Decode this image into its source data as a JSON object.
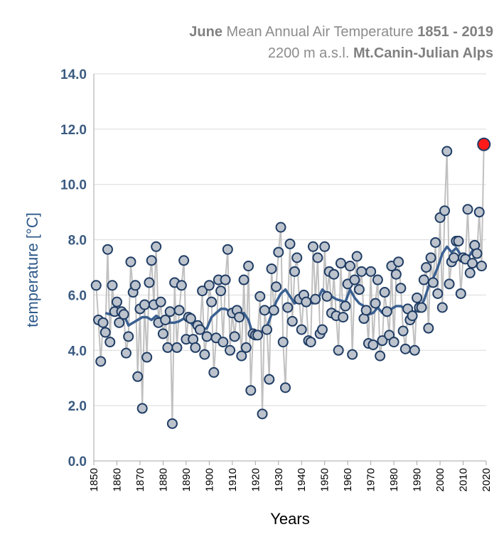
{
  "title": {
    "line1_bold1": "June",
    "line1_text": " Mean Annual Air Temperature ",
    "line1_bold2": "1851 - 2019",
    "line2_text": "2200 m a.s.l. ",
    "line2_bold": "Mt.Canin-Julian Alps"
  },
  "chart_data": {
    "type": "line",
    "xlabel": "Years",
    "ylabel": "temperature [°C]",
    "xlim": [
      1850,
      2020
    ],
    "ylim": [
      0,
      14
    ],
    "x_ticks": [
      1850,
      1860,
      1870,
      1880,
      1890,
      1900,
      1910,
      1920,
      1930,
      1940,
      1950,
      1960,
      1970,
      1980,
      1990,
      2000,
      2010,
      2020
    ],
    "y_ticks": [
      "0.0",
      "2.0",
      "4.0",
      "6.0",
      "8.0",
      "10.0",
      "12.0",
      "14.0"
    ],
    "grid": "horizontal",
    "colors": {
      "annual_line": "#c0c0c0",
      "marker_fill": "#bcc3cc",
      "marker_edge": "#1f3c64",
      "smooth_line": "#3a6091",
      "highlight_fill": "#ff1a1a",
      "axis_text": "#3a5a80",
      "grid": "#d9d9d9"
    },
    "series": [
      {
        "kind": "annual",
        "x": [
          1851,
          1852,
          1853,
          1854,
          1855,
          1856,
          1857,
          1858,
          1859,
          1860,
          1861,
          1862,
          1863,
          1864,
          1865,
          1866,
          1867,
          1868,
          1869,
          1870,
          1871,
          1872,
          1873,
          1874,
          1875,
          1876,
          1877,
          1878,
          1879,
          1880,
          1881,
          1882,
          1883,
          1884,
          1885,
          1886,
          1887,
          1888,
          1889,
          1890,
          1891,
          1892,
          1893,
          1894,
          1895,
          1896,
          1897,
          1898,
          1899,
          1900,
          1901,
          1902,
          1903,
          1904,
          1905,
          1906,
          1907,
          1908,
          1909,
          1910,
          1911,
          1912,
          1913,
          1914,
          1915,
          1916,
          1917,
          1918,
          1919,
          1920,
          1921,
          1922,
          1923,
          1924,
          1925,
          1926,
          1927,
          1928,
          1929,
          1930,
          1931,
          1932,
          1933,
          1934,
          1935,
          1936,
          1937,
          1938,
          1939,
          1940,
          1941,
          1942,
          1943,
          1944,
          1945,
          1946,
          1947,
          1948,
          1949,
          1950,
          1951,
          1952,
          1953,
          1954,
          1955,
          1956,
          1957,
          1958,
          1959,
          1960,
          1961,
          1962,
          1963,
          1964,
          1965,
          1966,
          1967,
          1968,
          1969,
          1970,
          1971,
          1972,
          1973,
          1974,
          1975,
          1976,
          1977,
          1978,
          1979,
          1980,
          1981,
          1982,
          1983,
          1984,
          1985,
          1986,
          1987,
          1988,
          1989,
          1990,
          1991,
          1992,
          1993,
          1994,
          1995,
          1996,
          1997,
          1998,
          1999,
          2000,
          2001,
          2002,
          2003,
          2004,
          2005,
          2006,
          2007,
          2008,
          2009,
          2010,
          2011,
          2012,
          2013,
          2014,
          2015,
          2016,
          2017,
          2018
        ],
        "y": [
          6.35,
          5.1,
          3.6,
          5.0,
          4.65,
          7.65,
          4.3,
          6.35,
          5.4,
          5.75,
          5.0,
          5.4,
          5.3,
          3.9,
          4.5,
          7.2,
          6.1,
          6.35,
          3.05,
          5.5,
          1.9,
          5.65,
          3.75,
          6.45,
          7.25,
          5.65,
          7.75,
          5.0,
          5.75,
          4.6,
          5.1,
          4.1,
          5.4,
          1.35,
          6.45,
          4.1,
          5.45,
          6.35,
          7.25,
          4.4,
          5.2,
          5.15,
          4.4,
          4.1,
          4.9,
          4.75,
          6.15,
          3.85,
          4.5,
          6.35,
          5.75,
          3.2,
          4.45,
          6.55,
          6.15,
          4.3,
          6.55,
          7.65,
          4.0,
          5.35,
          4.5,
          5.45,
          5.2,
          3.8,
          6.55,
          4.1,
          7.05,
          2.55,
          4.6,
          4.55,
          4.55,
          5.95,
          1.7,
          5.45,
          4.75,
          2.95,
          6.95,
          5.45,
          6.3,
          7.55,
          8.45,
          4.3,
          2.65,
          5.55,
          7.85,
          5.05,
          6.85,
          7.35,
          5.85,
          4.75,
          6.0,
          5.75,
          4.35,
          4.3,
          7.75,
          5.85,
          7.35,
          4.6,
          4.75,
          7.75,
          5.95,
          6.85,
          5.35,
          6.75,
          5.25,
          4.0,
          7.15,
          5.2,
          5.6,
          6.4,
          7.05,
          3.85,
          6.55,
          7.4,
          6.2,
          6.85,
          5.15,
          5.45,
          4.25,
          6.85,
          4.2,
          5.7,
          6.55,
          3.8,
          4.35,
          6.1,
          5.4,
          4.55,
          7.05,
          4.3,
          6.75,
          7.2,
          6.25,
          4.7,
          4.05,
          5.5,
          5.1,
          5.25,
          4.0,
          5.9,
          5.55,
          5.55,
          6.55,
          7.0,
          4.8,
          7.35,
          6.45,
          7.9,
          6.05,
          8.8,
          5.55,
          9.05,
          11.2,
          6.4,
          7.2,
          7.35,
          7.95,
          7.95,
          6.05,
          7.35,
          7.3,
          9.1,
          6.8,
          7.15,
          7.8,
          7.5,
          9.0,
          7.05
        ]
      },
      {
        "kind": "moving_average",
        "x": [
          1855,
          1857,
          1859,
          1861,
          1863,
          1865,
          1867,
          1869,
          1871,
          1873,
          1875,
          1877,
          1879,
          1881,
          1883,
          1885,
          1887,
          1889,
          1891,
          1893,
          1895,
          1897,
          1899,
          1901,
          1903,
          1905,
          1907,
          1909,
          1911,
          1913,
          1915,
          1917,
          1919,
          1921,
          1923,
          1925,
          1927,
          1929,
          1931,
          1933,
          1935,
          1937,
          1939,
          1941,
          1943,
          1945,
          1947,
          1949,
          1951,
          1953,
          1955,
          1957,
          1959,
          1961,
          1963,
          1965,
          1967,
          1969,
          1971,
          1973,
          1975,
          1977,
          1979,
          1981,
          1983,
          1985,
          1987,
          1989,
          1991,
          1993,
          1995,
          1997,
          1999,
          2001,
          2003,
          2005,
          2007,
          2009,
          2011,
          2013,
          2015
        ],
        "y": [
          5.35,
          5.3,
          5.35,
          5.4,
          5.3,
          4.9,
          5.0,
          5.1,
          5.2,
          5.2,
          5.1,
          5.25,
          5.15,
          5.1,
          5.0,
          5.0,
          5.05,
          5.15,
          5.1,
          4.9,
          4.8,
          4.75,
          4.8,
          5.2,
          5.35,
          5.5,
          5.5,
          5.4,
          5.35,
          5.3,
          5.35,
          5.1,
          4.55,
          4.6,
          4.7,
          4.85,
          5.3,
          5.75,
          6.05,
          6.2,
          5.95,
          5.7,
          5.8,
          5.95,
          5.75,
          5.7,
          5.85,
          6.2,
          6.05,
          5.95,
          5.85,
          5.8,
          5.75,
          6.2,
          5.9,
          5.7,
          5.6,
          5.3,
          5.35,
          5.55,
          5.35,
          5.4,
          5.5,
          5.6,
          5.6,
          5.5,
          5.4,
          5.4,
          5.5,
          5.8,
          6.3,
          6.6,
          7.0,
          7.5,
          7.75,
          7.55,
          7.7,
          7.45,
          7.35,
          7.45,
          7.75
        ]
      },
      {
        "kind": "highlight",
        "x": [
          2019
        ],
        "y": [
          11.45
        ]
      }
    ]
  }
}
